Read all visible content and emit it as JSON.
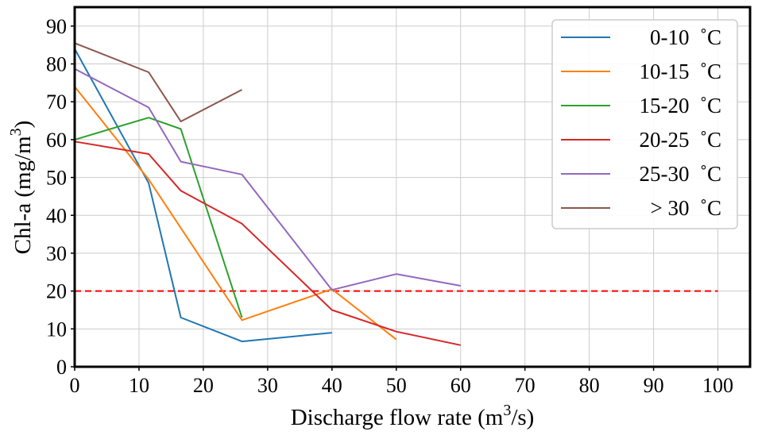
{
  "chart_data": {
    "type": "line",
    "xlabel": "Discharge flow rate (m",
    "xlabel_sup": "3",
    "xlabel_end": "/s)",
    "ylabel": "Chl-a (mg/m",
    "ylabel_sup": "3",
    "ylabel_end": ")",
    "xlim": [
      0,
      105
    ],
    "ylim": [
      0,
      95
    ],
    "xticks": [
      0,
      10,
      20,
      30,
      40,
      50,
      60,
      70,
      80,
      90,
      100
    ],
    "yticks": [
      0,
      10,
      20,
      30,
      40,
      50,
      60,
      70,
      80,
      90
    ],
    "grid": true,
    "legend_position": "top-right",
    "series": [
      {
        "name": "0-10  ˚C",
        "color": "#1f77b4",
        "x": [
          0,
          11.5,
          16.5,
          26,
          40
        ],
        "y": [
          84,
          48.5,
          13,
          6.7,
          9
        ]
      },
      {
        "name": "10-15  ˚C",
        "color": "#ff7f0e",
        "x": [
          0,
          11.5,
          26,
          40,
          50
        ],
        "y": [
          74,
          49.5,
          12.3,
          20.5,
          7.2
        ]
      },
      {
        "name": "15-20  ˚C",
        "color": "#2ca02c",
        "x": [
          0,
          11.5,
          16.5,
          26
        ],
        "y": [
          60,
          65.8,
          62.8,
          13
        ]
      },
      {
        "name": "20-25  ˚C",
        "color": "#d62728",
        "x": [
          0,
          11.5,
          16.5,
          26,
          40,
          50,
          60
        ],
        "y": [
          59.5,
          56.2,
          46.5,
          37.8,
          15,
          9.3,
          5.7
        ]
      },
      {
        "name": "25-30  ˚C",
        "color": "#9467bd",
        "x": [
          0,
          11.5,
          16.5,
          26,
          40,
          50,
          60
        ],
        "y": [
          78.7,
          68.5,
          54.2,
          50.8,
          20.3,
          24.5,
          21.4
        ]
      },
      {
        "name": "> 30  ˚C",
        "color": "#8c564b",
        "x": [
          0,
          11.5,
          16.5,
          26
        ],
        "y": [
          85.5,
          77.8,
          64.8,
          73.2
        ]
      }
    ],
    "reference_line": {
      "y": 20,
      "x_range": [
        0,
        100
      ],
      "color": "#ff0000",
      "style": "dashed"
    }
  }
}
